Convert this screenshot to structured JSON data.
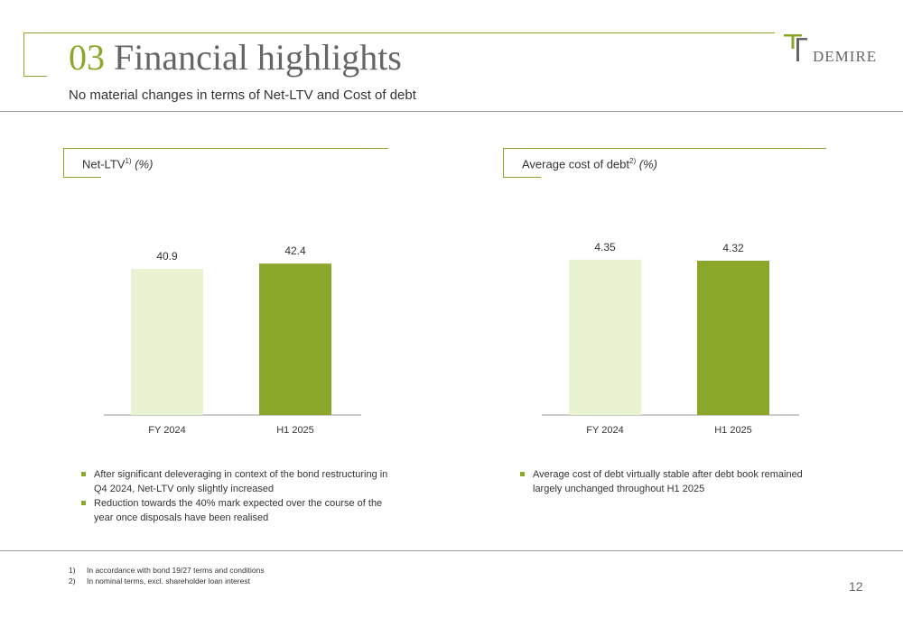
{
  "header": {
    "section_number": "03",
    "title": "Financial highlights",
    "subtitle": "No material changes in terms of Net-LTV and Cost of debt"
  },
  "logo": {
    "text": "DEMIRE"
  },
  "panels": [
    {
      "label": "Net-LTV",
      "footnote_ref": "1)",
      "unit": "(%)",
      "bullets": [
        "After significant deleveraging in context of the bond restructuring in Q4 2024, Net-LTV only slightly increased",
        "Reduction towards the 40% mark expected over the course of the year once disposals have been realised"
      ]
    },
    {
      "label": "Average cost of debt",
      "footnote_ref": "2)",
      "unit": "(%)",
      "bullets": [
        "Average cost of debt virtually stable after debt book remained largely unchanged throughout H1 2025"
      ]
    }
  ],
  "chart_data": [
    {
      "type": "bar",
      "title": "Net-LTV1) (%)",
      "categories": [
        "FY 2024",
        "H1 2025"
      ],
      "values": [
        40.9,
        42.4
      ],
      "value_labels": [
        "40.9",
        "42.4"
      ],
      "ylim": [
        0,
        48
      ],
      "grid": false,
      "legend": "none",
      "colors": [
        "#e9f2d1",
        "#8aa72a"
      ]
    },
    {
      "type": "bar",
      "title": "Average cost of debt2) (%)",
      "categories": [
        "FY 2024",
        "H1 2025"
      ],
      "values": [
        4.35,
        4.32
      ],
      "value_labels": [
        "4.35",
        "4.32"
      ],
      "ylim": [
        0,
        4.8
      ],
      "grid": false,
      "legend": "none",
      "colors": [
        "#e9f2d1",
        "#8aa72a"
      ]
    }
  ],
  "footnotes": [
    {
      "num": "1)",
      "text": "In accordance with bond 19/27 terms and conditions"
    },
    {
      "num": "2)",
      "text": "In nominal terms, excl. shareholder loan interest"
    }
  ],
  "page_number": "12",
  "colors": {
    "accent": "#8aa72a",
    "bar_light": "#e9f2d1",
    "rule": "#9a9a9a"
  }
}
